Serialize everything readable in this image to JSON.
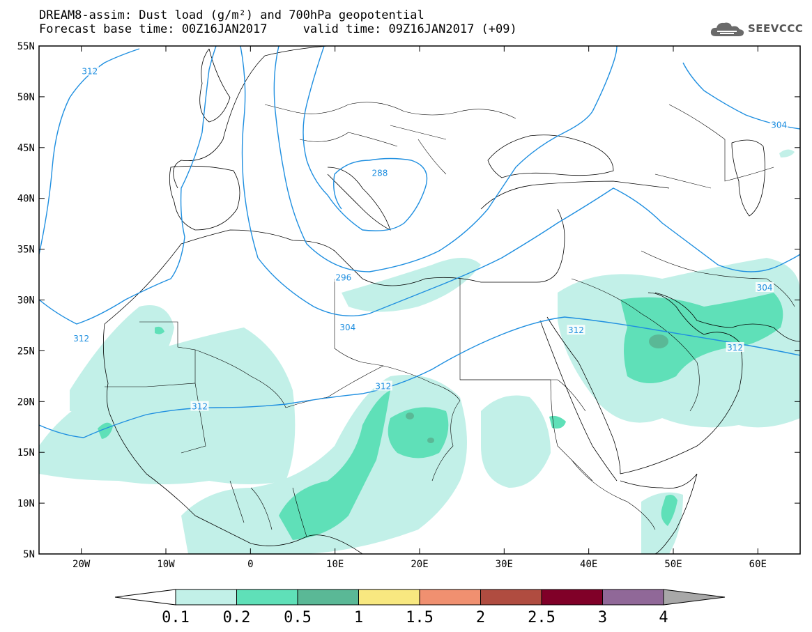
{
  "header": {
    "title_line1": "DREAM8-assim: Dust load (g/m²) and 700hPa geopotential",
    "title_line2": "Forecast base time: 00Z16JAN2017     valid time: 09Z16JAN2017 (+09)"
  },
  "logo": {
    "text": "SEEVCCC",
    "icon": "cloud-logo-icon",
    "color": "#555555"
  },
  "map": {
    "projection": "lat-lon",
    "lon_range": [
      -25,
      65
    ],
    "lat_range": [
      5,
      55
    ],
    "lat_ticks": [
      "55N",
      "50N",
      "45N",
      "40N",
      "35N",
      "30N",
      "25N",
      "20N",
      "15N",
      "10N",
      "5N"
    ],
    "lon_ticks": [
      "20W",
      "10W",
      "0",
      "10E",
      "20E",
      "30E",
      "40E",
      "50E",
      "60E"
    ],
    "contour_color": "#1f8fe0",
    "contour_labels": [
      {
        "text": "312",
        "lon": -19,
        "lat": 52.5
      },
      {
        "text": "312",
        "lon": -20,
        "lat": 26.2
      },
      {
        "text": "312",
        "lon": -6,
        "lat": 19.5
      },
      {
        "text": "312",
        "lon": 15.7,
        "lat": 21.5
      },
      {
        "text": "312",
        "lon": 38.5,
        "lat": 27
      },
      {
        "text": "312",
        "lon": 57.3,
        "lat": 25.3
      },
      {
        "text": "304",
        "lon": 62.5,
        "lat": 47.2
      },
      {
        "text": "304",
        "lon": 60.8,
        "lat": 31.2
      },
      {
        "text": "304",
        "lon": 11.5,
        "lat": 27.3
      },
      {
        "text": "296",
        "lon": 11,
        "lat": 32.2
      },
      {
        "text": "288",
        "lon": 15.3,
        "lat": 42.5
      }
    ]
  },
  "legend": {
    "colors": [
      "#c2f0e8",
      "#5fe0b8",
      "#5ab896",
      "#f8e880",
      "#f09070",
      "#b04c40",
      "#800028",
      "#906898"
    ],
    "under_color": "#ffffff",
    "over_color": "#a8a8a8",
    "labels": [
      "0.1",
      "0.2",
      "0.5",
      "1",
      "1.5",
      "2",
      "2.5",
      "3",
      "4"
    ]
  }
}
